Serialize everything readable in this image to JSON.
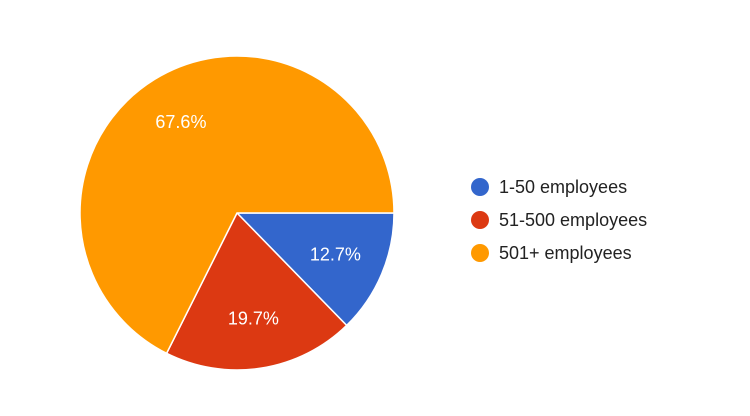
{
  "chart_data": {
    "type": "pie",
    "categories": [
      "1-50 employees",
      "51-500 employees",
      "501+ employees"
    ],
    "values": [
      12.7,
      19.7,
      67.6
    ],
    "value_labels": [
      "12.7%",
      "19.7%",
      "67.6%"
    ],
    "colors": [
      "#3366cc",
      "#dc3912",
      "#ff9900"
    ],
    "start_angle_deg": 90,
    "direction": "clockwise",
    "legend_position": "right",
    "title": ""
  }
}
